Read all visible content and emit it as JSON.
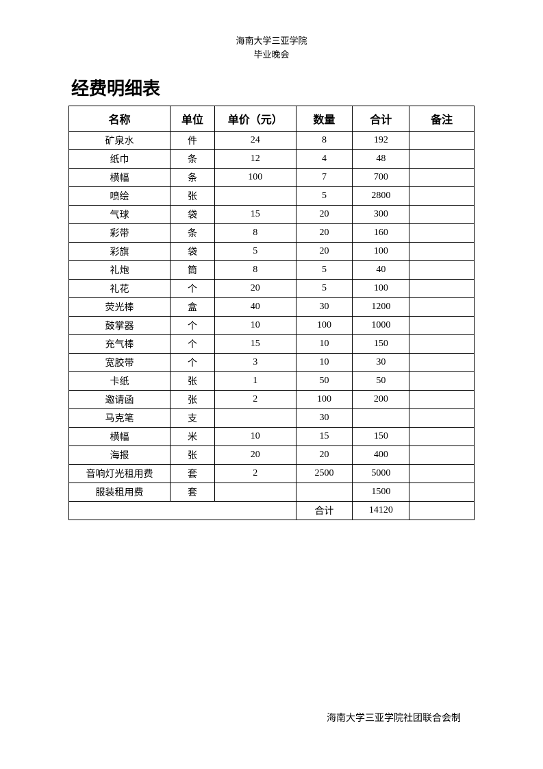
{
  "header": {
    "line1": "海南大学三亚学院",
    "line2": "毕业晚会"
  },
  "title": "经费明细表",
  "table": {
    "columns": [
      "名称",
      "单位",
      "单价（元）",
      "数量",
      "合计",
      "备注"
    ],
    "column_widths": [
      "25%",
      "11%",
      "20%",
      "14%",
      "14%",
      "16%"
    ],
    "header_fontsize": 16,
    "cell_fontsize": 14,
    "border_color": "#000000",
    "background_color": "#ffffff",
    "rows": [
      [
        "矿泉水",
        "件",
        "24",
        "8",
        "192",
        ""
      ],
      [
        "纸巾",
        "条",
        "12",
        "4",
        "48",
        ""
      ],
      [
        "横幅",
        "条",
        "100",
        "7",
        "700",
        ""
      ],
      [
        "喷绘",
        "张",
        "",
        "5",
        "2800",
        ""
      ],
      [
        "气球",
        "袋",
        "15",
        "20",
        "300",
        ""
      ],
      [
        "彩带",
        "条",
        "8",
        "20",
        "160",
        ""
      ],
      [
        "彩旗",
        "袋",
        "5",
        "20",
        "100",
        ""
      ],
      [
        "礼炮",
        "筒",
        "8",
        "5",
        "40",
        ""
      ],
      [
        "礼花",
        "个",
        "20",
        "5",
        "100",
        ""
      ],
      [
        "荧光棒",
        "盒",
        "40",
        "30",
        "1200",
        ""
      ],
      [
        "鼓掌器",
        "个",
        "10",
        "100",
        "1000",
        ""
      ],
      [
        "充气棒",
        "个",
        "15",
        "10",
        "150",
        ""
      ],
      [
        "宽胶带",
        "个",
        "3",
        "10",
        "30",
        ""
      ],
      [
        "卡纸",
        "张",
        "1",
        "50",
        "50",
        ""
      ],
      [
        "邀请函",
        "张",
        "2",
        "100",
        "200",
        ""
      ],
      [
        "马克笔",
        "支",
        "",
        "30",
        "",
        ""
      ],
      [
        "横幅",
        "米",
        "10",
        "15",
        "150",
        ""
      ],
      [
        "海报",
        "张",
        "20",
        "20",
        "400",
        ""
      ],
      [
        "音响灯光租用费",
        "套",
        "2",
        "2500",
        "5000",
        ""
      ],
      [
        "服装租用费",
        "套",
        "",
        "",
        "1500",
        ""
      ]
    ],
    "total_row": {
      "label": "合计",
      "value": "14120"
    }
  },
  "footer": "海南大学三亚学院社团联合会制"
}
